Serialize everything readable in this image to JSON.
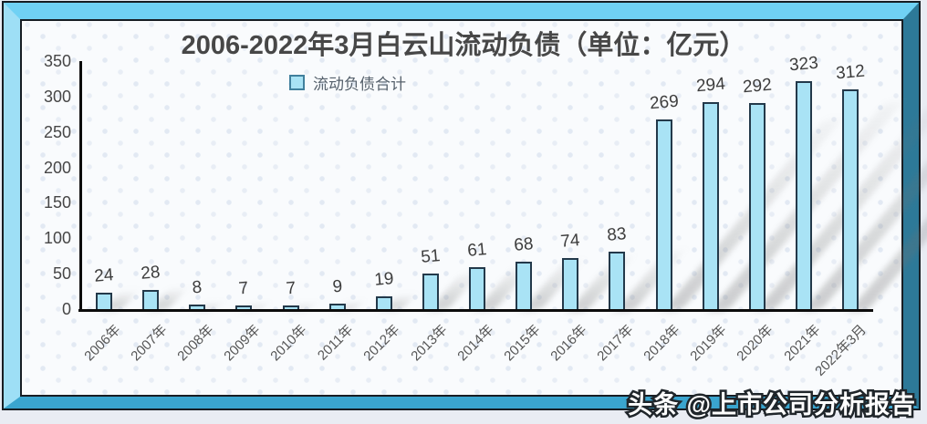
{
  "title": "2006-2022年3月白云山流动负债（单位：亿元）",
  "legend": {
    "label": "流动负债合计"
  },
  "watermark": "头条 @上市公司分析报告",
  "colors": {
    "bar_fill": "#a9e3f5",
    "bar_border": "#23394a",
    "frame_top": "#70d1f4",
    "frame_left": "#9edff6",
    "frame_right": "#2d7998",
    "frame_bottom": "#3aa5cf",
    "title_text": "#474747",
    "axis": "#0c0c0c"
  },
  "chart_data": {
    "type": "bar",
    "title": "2006-2022年3月白云山流动负债（单位：亿元）",
    "legend_entries": [
      "流动负债合计"
    ],
    "legend_position": "top-inside-left",
    "categories": [
      "2006年",
      "2007年",
      "2008年",
      "2009年",
      "2010年",
      "2011年",
      "2012年",
      "2013年",
      "2014年",
      "2015年",
      "2016年",
      "2017年",
      "2018年",
      "2019年",
      "2020年",
      "2021年",
      "2022年3月"
    ],
    "values": [
      24,
      28,
      8,
      7,
      7,
      9,
      19,
      51,
      61,
      68,
      74,
      83,
      269,
      294,
      292,
      323,
      312
    ],
    "xlabel": "",
    "ylabel": "",
    "ylim": [
      0,
      350
    ],
    "yticks": [
      0,
      50,
      100,
      150,
      200,
      250,
      300,
      350
    ],
    "grid": false,
    "bar_labels_shown": true
  }
}
